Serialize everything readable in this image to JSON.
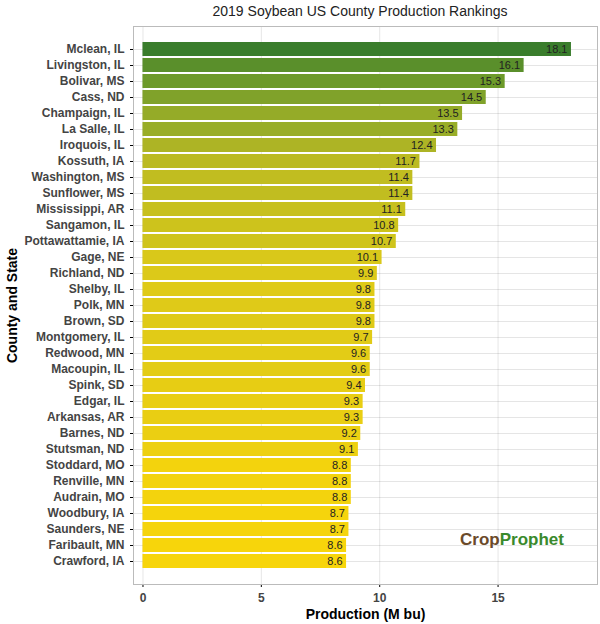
{
  "chart_data": {
    "type": "bar",
    "orientation": "horizontal",
    "title": "2019 Soybean US County Production Rankings",
    "x_label": "Production (M bu)",
    "y_label": "County and State",
    "categories": [
      "Mclean, IL",
      "Livingston, IL",
      "Bolivar, MS",
      "Cass, ND",
      "Champaign, IL",
      "La Salle, IL",
      "Iroquois, IL",
      "Kossuth, IA",
      "Washington, MS",
      "Sunflower, MS",
      "Mississippi, AR",
      "Sangamon, IL",
      "Pottawattamie, IA",
      "Gage, NE",
      "Richland, ND",
      "Shelby, IL",
      "Polk, MN",
      "Brown, SD",
      "Montgomery, IL",
      "Redwood, MN",
      "Macoupin, IL",
      "Spink, SD",
      "Edgar, IL",
      "Arkansas, AR",
      "Barnes, ND",
      "Stutsman, ND",
      "Stoddard, MO",
      "Renville, MN",
      "Audrain, MO",
      "Woodbury, IA",
      "Saunders, NE",
      "Faribault, MN",
      "Crawford, IA"
    ],
    "values": [
      18.1,
      16.1,
      15.3,
      14.5,
      13.5,
      13.3,
      12.4,
      11.7,
      11.4,
      11.4,
      11.1,
      10.8,
      10.7,
      10.1,
      9.9,
      9.8,
      9.8,
      9.8,
      9.7,
      9.6,
      9.6,
      9.4,
      9.3,
      9.3,
      9.2,
      9.1,
      8.8,
      8.8,
      8.8,
      8.7,
      8.7,
      8.6,
      8.6
    ],
    "colors": [
      "#3a7d2c",
      "#5a8f2b",
      "#6d9a2a",
      "#80a22a",
      "#95ab28",
      "#99ad28",
      "#adb425",
      "#bbba22",
      "#c1bd20",
      "#c1bd20",
      "#c7c01e",
      "#cdc31c",
      "#cfc41c",
      "#d9c81a",
      "#dcc919",
      "#dfca18",
      "#dfca18",
      "#dfca18",
      "#e1cb17",
      "#e3cc16",
      "#e3cc16",
      "#e7cd14",
      "#e9ce13",
      "#e9ce13",
      "#ebcf12",
      "#edd011",
      "#f3d30d",
      "#f3d30d",
      "#f3d30d",
      "#f5d40c",
      "#f5d40c",
      "#f7d50b",
      "#f7d50b"
    ],
    "xlim": [
      -0.4,
      19.2
    ],
    "xticks": [
      0,
      5,
      10,
      15
    ],
    "grid": true,
    "data_labels": true,
    "annotations": [
      "CropProphet"
    ]
  }
}
